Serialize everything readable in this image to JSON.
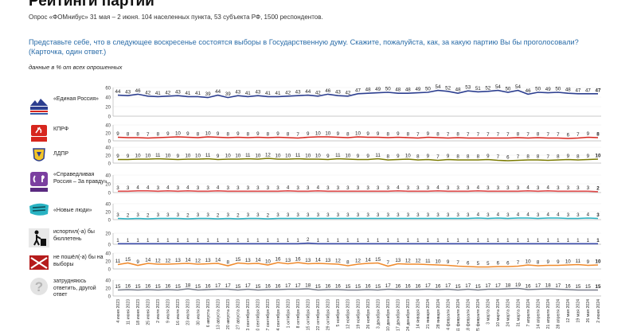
{
  "header": {
    "title": "Рейтинги партий",
    "subtitle": "Опрос «ФОМнибус» 31 мая – 2 июня. 104 населенных пункта, 53 субъекта РФ, 1500 респондентов.",
    "question": "Представьте себе, что в следующее воскресенье состоятся выборы в Государственную думу. Скажите, пожалуйста, как, за какую партию Вы бы проголосовали? (Карточка, один ответ.)",
    "units": "данные в % от всех опрошенных"
  },
  "chart_data": {
    "type": "line",
    "categories": [
      "4 июня 2023",
      "11 июня 2023",
      "18 июня 2023",
      "25 июня 2023",
      "2 июля 2023",
      "9 июля 2023",
      "16 июля 2023",
      "23 июля 2023",
      "30 июля 2023",
      "6 августа 2023",
      "13 августа 2023",
      "20 августа 2023",
      "27 августа 2023",
      "3 сентября 2023",
      "10 сентября 2023",
      "17 сентября 2023",
      "24 сентября 2023",
      "1 октября 2023",
      "8 октября 2023",
      "15 октября 2023",
      "22 октября 2023",
      "29 октября 2023",
      "5 ноября 2023",
      "12 ноября 2023",
      "19 ноября 2023",
      "26 ноября 2023",
      "3 декабря 2023",
      "10 декабря 2023",
      "17 декабря 2023",
      "24 декабря 2023",
      "14 января 2024",
      "21 января 2024",
      "28 января 2024",
      "4 февраля 2024",
      "11 февраля 2024",
      "18 февраля 2024",
      "25 февраля 2024",
      "3 марта 2024",
      "10 марта 2024",
      "24 марта 2024",
      "31 марта 2024",
      "7 апреля 2024",
      "14 апреля 2024",
      "21 апреля 2024",
      "28 апреля 2024",
      "12 мая 2024",
      "19 мая 2024",
      "26 мая 2024",
      "2 июня 2024"
    ],
    "series": [
      {
        "name": "«Единая Россия»",
        "color": "#2c3e8f",
        "yticks": [
          0,
          20,
          40,
          60
        ],
        "ylim": [
          0,
          60
        ],
        "values": [
          44,
          43,
          46,
          42,
          41,
          42,
          43,
          41,
          41,
          39,
          44,
          39,
          43,
          41,
          43,
          41,
          41,
          42,
          43,
          44,
          42,
          46,
          43,
          42,
          47,
          48,
          49,
          50,
          48,
          48,
          49,
          50,
          54,
          52,
          48,
          53,
          51,
          52,
          54,
          50,
          54,
          46,
          50,
          49,
          50,
          48,
          47,
          47,
          47
        ]
      },
      {
        "name": "КПРФ",
        "color": "#d7261e",
        "yticks": [
          0,
          20,
          40
        ],
        "ylim": [
          0,
          40
        ],
        "values": [
          9,
          8,
          8,
          7,
          8,
          9,
          10,
          9,
          8,
          10,
          9,
          8,
          9,
          8,
          9,
          8,
          9,
          8,
          7,
          9,
          10,
          10,
          9,
          8,
          10,
          9,
          9,
          8,
          9,
          8,
          7,
          9,
          8,
          7,
          8,
          7,
          7,
          7,
          7,
          7,
          8,
          7,
          8,
          7,
          7,
          6,
          7,
          9,
          8
        ]
      },
      {
        "name": "ЛДПР",
        "color": "#7a7a00",
        "yticks": [
          0,
          20,
          40
        ],
        "ylim": [
          0,
          40
        ],
        "values": [
          9,
          9,
          10,
          10,
          11,
          10,
          9,
          10,
          10,
          11,
          9,
          10,
          10,
          11,
          10,
          12,
          10,
          10,
          11,
          10,
          10,
          9,
          11,
          10,
          9,
          9,
          11,
          8,
          9,
          10,
          8,
          9,
          7,
          9,
          8,
          8,
          8,
          9,
          7,
          6,
          7,
          8,
          8,
          7,
          8,
          9,
          8,
          9,
          10
        ]
      },
      {
        "name": "«Справедливая Россия – За правду»",
        "color": "#e04b4b",
        "yticks": [
          0,
          20,
          40
        ],
        "ylim": [
          0,
          40
        ],
        "values": [
          3,
          3,
          4,
          4,
          3,
          4,
          3,
          4,
          3,
          3,
          4,
          3,
          3,
          3,
          3,
          3,
          3,
          4,
          3,
          3,
          4,
          3,
          3,
          3,
          3,
          3,
          3,
          3,
          4,
          3,
          3,
          3,
          4,
          3,
          3,
          3,
          4,
          3,
          3,
          3,
          3,
          4,
          3,
          4,
          3,
          3,
          3,
          3,
          2
        ]
      },
      {
        "name": "«Новые люди»",
        "color": "#29b3c3",
        "yticks": [
          0,
          20,
          40
        ],
        "ylim": [
          0,
          40
        ],
        "values": [
          3,
          2,
          3,
          2,
          3,
          3,
          3,
          2,
          3,
          3,
          2,
          3,
          2,
          3,
          3,
          2,
          3,
          3,
          3,
          3,
          3,
          3,
          3,
          3,
          3,
          3,
          3,
          3,
          3,
          3,
          3,
          3,
          3,
          3,
          3,
          3,
          4,
          3,
          4,
          3,
          4,
          4,
          3,
          4,
          4,
          3,
          3,
          4,
          3
        ]
      },
      {
        "name": "испортил(-а) бы бюллетень",
        "color": "#3b4ba8",
        "yticks": [
          0,
          20
        ],
        "ylim": [
          0,
          20
        ],
        "values": [
          1,
          1,
          1,
          1,
          1,
          1,
          1,
          1,
          1,
          1,
          1,
          1,
          1,
          1,
          1,
          1,
          1,
          1,
          1,
          2,
          1,
          1,
          1,
          1,
          1,
          1,
          1,
          1,
          1,
          1,
          1,
          1,
          1,
          1,
          1,
          1,
          1,
          1,
          1,
          1,
          1,
          1,
          1,
          1,
          1,
          1,
          1,
          1,
          1
        ]
      },
      {
        "name": "не пошёл(-а) бы на выборы",
        "color": "#f08a2c",
        "yticks": [
          0,
          20,
          40
        ],
        "ylim": [
          0,
          40
        ],
        "values": [
          11,
          15,
          9,
          14,
          12,
          12,
          13,
          14,
          12,
          13,
          14,
          8,
          15,
          13,
          14,
          10,
          16,
          13,
          16,
          13,
          14,
          13,
          12,
          8,
          12,
          14,
          15,
          7,
          13,
          12,
          12,
          11,
          10,
          9,
          7,
          6,
          5,
          5,
          6,
          6,
          7,
          10,
          8,
          9,
          9,
          10,
          11,
          9,
          10
        ]
      },
      {
        "name": "затрудняюсь ответить, другой ответ",
        "color": "#7a7f8c",
        "yticks": [
          0,
          20,
          40
        ],
        "ylim": [
          0,
          40
        ],
        "values": [
          15,
          16,
          15,
          16,
          15,
          16,
          15,
          18,
          15,
          16,
          17,
          17,
          15,
          17,
          15,
          16,
          16,
          17,
          17,
          18,
          15,
          16,
          16,
          15,
          15,
          16,
          15,
          17,
          16,
          16,
          16,
          17,
          16,
          17,
          15,
          17,
          15,
          17,
          17,
          18,
          19,
          16,
          17,
          18,
          17,
          16,
          15,
          15,
          15
        ]
      }
    ]
  }
}
